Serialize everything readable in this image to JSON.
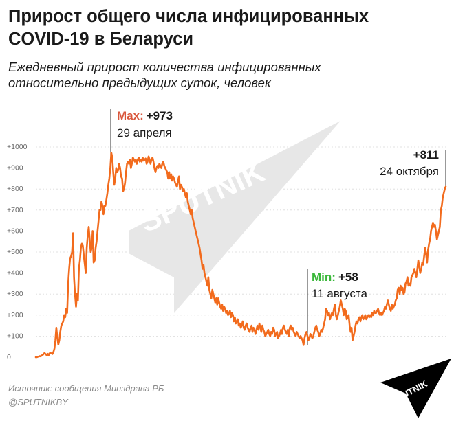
{
  "header": {
    "title": "Прирост общего числа инфицированных COVID-19 в Беларуси",
    "subtitle": "Ежедневный прирост количества инфицированных относительно предыдущих суток, человек"
  },
  "footer": {
    "source": "Источник: сообщения Минздрава РБ",
    "handle": "@SPUTNIKBY"
  },
  "watermark": {
    "text": "SPUTNIK"
  },
  "brand_logo": {
    "text": "SPUTNIK"
  },
  "annotations": {
    "max": {
      "label": "Max:",
      "value": "+973",
      "date": "29 апреля"
    },
    "min": {
      "label": "Min:",
      "value": "+58",
      "date": "11 августа"
    },
    "last": {
      "value": "+811",
      "date": "24 октября"
    }
  },
  "colors": {
    "line": "#f26b1d",
    "max_label": "#d9573c",
    "min_label": "#3bb83b",
    "grid": "#d9d9d9",
    "text": "#1a1a1a",
    "muted": "#8a8a8a"
  },
  "chart_data": {
    "type": "line",
    "y_tick_labels": [
      "0",
      "+100",
      "+200",
      "+300",
      "+400",
      "+500",
      "+600",
      "+700",
      "+800",
      "+900",
      "+1000"
    ],
    "ylim": [
      0,
      1000
    ],
    "grid": "horizontal dashed",
    "series": [
      {
        "values": [
          0,
          0,
          2,
          3,
          5,
          4,
          8,
          10,
          15,
          20,
          14,
          10,
          16,
          8,
          18,
          19,
          18,
          15,
          25,
          40,
          80,
          140,
          90,
          60,
          80,
          120,
          150,
          160,
          170,
          200,
          190,
          230,
          210,
          350,
          420,
          470,
          480,
          500,
          590,
          380,
          300,
          240,
          300,
          270,
          420,
          460,
          520,
          540,
          530,
          480,
          440,
          400,
          520,
          580,
          620,
          560,
          500,
          520,
          600,
          450,
          460,
          520,
          550,
          600,
          650,
          700,
          700,
          740,
          720,
          680,
          720,
          720,
          750,
          780,
          820,
          850,
          900,
          973,
          950,
          880,
          820,
          850,
          900,
          880,
          890,
          920,
          900,
          860,
          850,
          790,
          800,
          830,
          880,
          920,
          930,
          920,
          940,
          900,
          920,
          950,
          940,
          930,
          940,
          920,
          940,
          950,
          930,
          940,
          930,
          950,
          935,
          940,
          945,
          920,
          930,
          955,
          940,
          920,
          940,
          950,
          930,
          900,
          880,
          900,
          910,
          900,
          920,
          910,
          900,
          920,
          930,
          910,
          900,
          890,
          880,
          850,
          880,
          850,
          870,
          840,
          860,
          850,
          830,
          820,
          810,
          840,
          860,
          800,
          820,
          810,
          790,
          800,
          780,
          760,
          780,
          740,
          720,
          700,
          680,
          700,
          660,
          640,
          620,
          600,
          580,
          560,
          540,
          520,
          490,
          460,
          420,
          440,
          400,
          380,
          360,
          340,
          380,
          320,
          300,
          280,
          320,
          300,
          280,
          260,
          280,
          250,
          280,
          260,
          240,
          230,
          250,
          220,
          240,
          230,
          210,
          220,
          200,
          210,
          220,
          190,
          210,
          200,
          170,
          190,
          160,
          170,
          180,
          150,
          160,
          140,
          150,
          170,
          140,
          130,
          150,
          160,
          140,
          130,
          120,
          140,
          150,
          120,
          140,
          130,
          110,
          130,
          150,
          130,
          160,
          140,
          120,
          150,
          130,
          120,
          100,
          110,
          120,
          130,
          110,
          100,
          120,
          110,
          140,
          130,
          100,
          110,
          120,
          90,
          100,
          110,
          130,
          110,
          140,
          150,
          130,
          120,
          110,
          130,
          100,
          140,
          150,
          130,
          140,
          120,
          110,
          100,
          120,
          110,
          100,
          90,
          100,
          90,
          80,
          58,
          90,
          110,
          120,
          100,
          80,
          90,
          110,
          100,
          90,
          100,
          120,
          140,
          150,
          130,
          120,
          100,
          110,
          130,
          120,
          140,
          160,
          180,
          230,
          220,
          200,
          210,
          180,
          200,
          210,
          200,
          230,
          250,
          200,
          180,
          200,
          220,
          240,
          270,
          250,
          230,
          200,
          230,
          220,
          180,
          190,
          200,
          150,
          120,
          140,
          80,
          100,
          120,
          150,
          170,
          160,
          180,
          190,
          170,
          190,
          200,
          180,
          190,
          200,
          180,
          190,
          200,
          190,
          200,
          190,
          210,
          200,
          220,
          210,
          210,
          220,
          230,
          210,
          200,
          210,
          200,
          210,
          220,
          240,
          230,
          250,
          270,
          250,
          230,
          220,
          250,
          230,
          240,
          250,
          270,
          280,
          320,
          330,
          300,
          340,
          320,
          330,
          300,
          310,
          350,
          360,
          380,
          340,
          350,
          340,
          380,
          390,
          400,
          420,
          400,
          380,
          420,
          460,
          430,
          400,
          420,
          450,
          440,
          480,
          520,
          490,
          450,
          510,
          540,
          560,
          600,
          620,
          640,
          620,
          630,
          600,
          560,
          580,
          600,
          620,
          700,
          720,
          760,
          780,
          800,
          811
        ],
        "color": "#f26b1d"
      }
    ]
  }
}
